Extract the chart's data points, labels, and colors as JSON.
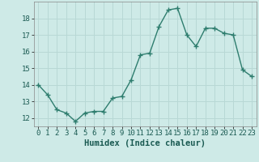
{
  "x": [
    0,
    1,
    2,
    3,
    4,
    5,
    6,
    7,
    8,
    9,
    10,
    11,
    12,
    13,
    14,
    15,
    16,
    17,
    18,
    19,
    20,
    21,
    22,
    23
  ],
  "y": [
    14.0,
    13.4,
    12.5,
    12.3,
    11.8,
    12.3,
    12.4,
    12.4,
    13.2,
    13.3,
    14.3,
    15.8,
    15.9,
    17.5,
    18.5,
    18.6,
    17.0,
    16.3,
    17.4,
    17.4,
    17.1,
    17.0,
    14.9,
    14.5
  ],
  "line_color": "#2e7d6e",
  "marker": "+",
  "markersize": 4,
  "linewidth": 1.0,
  "bg_color": "#ceeae7",
  "grid_color": "#b8d8d5",
  "xlabel": "Humidex (Indice chaleur)",
  "xlabel_fontsize": 7.5,
  "tick_fontsize": 6.5,
  "ylim": [
    11.5,
    19.0
  ],
  "yticks": [
    12,
    13,
    14,
    15,
    16,
    17,
    18
  ],
  "xticks": [
    0,
    1,
    2,
    3,
    4,
    5,
    6,
    7,
    8,
    9,
    10,
    11,
    12,
    13,
    14,
    15,
    16,
    17,
    18,
    19,
    20,
    21,
    22,
    23
  ]
}
